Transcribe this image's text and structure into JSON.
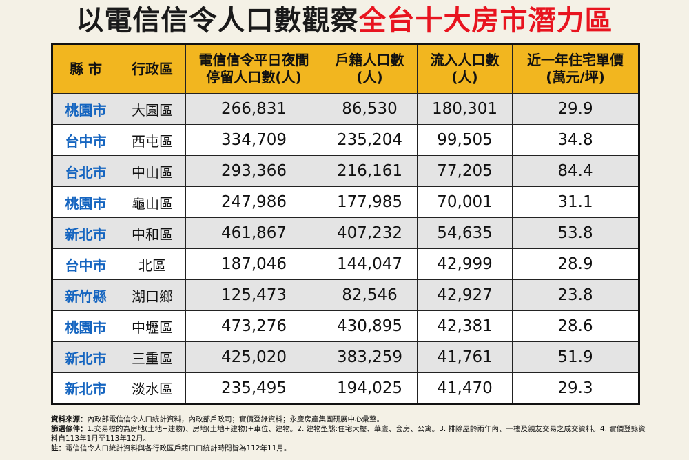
{
  "title": {
    "part1": "以電信信令人口數觀察",
    "part2": "全台十大房市潛力區"
  },
  "colors": {
    "header_bg": "#f2b61f",
    "city_text": "#1565c0",
    "title_accent": "#e8141f",
    "row_alt": "#e4e4e4"
  },
  "chart_data": {
    "type": "table",
    "columns": [
      "縣 市",
      "行政區",
      "電信信令平日夜間\n停留人口數(人)",
      "戶籍人口數\n(人)",
      "流入人口數\n(人)",
      "近一年住宅單價\n(萬元/坪)"
    ],
    "rows": [
      [
        "桃園市",
        "大園區",
        "266,831",
        "86,530",
        "180,301",
        "29.9"
      ],
      [
        "台中市",
        "西屯區",
        "334,709",
        "235,204",
        "99,505",
        "34.8"
      ],
      [
        "台北市",
        "中山區",
        "293,366",
        "216,161",
        "77,205",
        "84.4"
      ],
      [
        "桃園市",
        "龜山區",
        "247,986",
        "177,985",
        "70,001",
        "31.1"
      ],
      [
        "新北市",
        "中和區",
        "461,867",
        "407,232",
        "54,635",
        "53.8"
      ],
      [
        "台中市",
        "北區",
        "187,046",
        "144,047",
        "42,999",
        "28.9"
      ],
      [
        "新竹縣",
        "湖口鄉",
        "125,473",
        "82,546",
        "42,927",
        "23.8"
      ],
      [
        "桃園市",
        "中壢區",
        "473,276",
        "430,895",
        "42,381",
        "28.6"
      ],
      [
        "新北市",
        "三重區",
        "425,020",
        "383,259",
        "41,761",
        "51.9"
      ],
      [
        "新北市",
        "淡水區",
        "235,495",
        "194,025",
        "41,470",
        "29.3"
      ]
    ]
  },
  "notes": {
    "source_label": "資料來源：",
    "source_text": "內政部電信信令人口統計資料，內政部戶政司；實價登錄資料；永慶房產集團研展中心彙整。",
    "criteria_label": "篩選條件：",
    "criteria_text": "1.交易標的為房地(土地+建物)、房地(土地+建物)+車位、建物。2. 建物型態:住宅大樓、華廈、套房、公寓。3. 排除屋齡兩年內、一樓及親友交易之成交資料。4. 實價登錄資料自113年1月至113年12月。",
    "note_label": "註：",
    "note_text": "電信信令人口統計資料與各行政區戶籍口口統計時間皆為112年11月。"
  }
}
